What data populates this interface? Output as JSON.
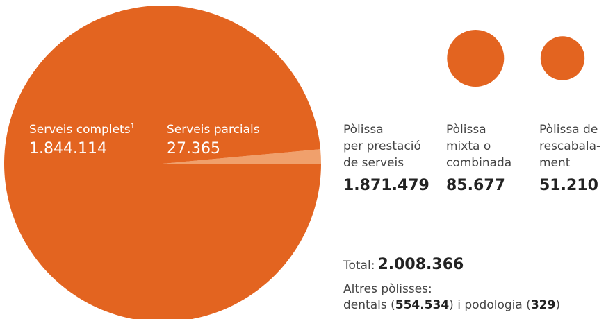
{
  "chart_data": [
    {
      "type": "pie",
      "categories": [
        "Serveis complets",
        "Serveis parcials"
      ],
      "category_notes": [
        "1",
        null
      ],
      "values": [
        1844114,
        27365
      ],
      "value_labels": [
        "1.844.114",
        "27.365"
      ],
      "colors": [
        "#e36420",
        "#f0a06c"
      ]
    },
    {
      "type": "bubble",
      "categories": [
        [
          "Pòlissa",
          "per prestació",
          "de serveis"
        ],
        [
          "Pòlissa",
          "mixta o",
          "combinada"
        ],
        [
          "Pòlissa de",
          "rescabala-",
          "ment"
        ]
      ],
      "values": [
        1871479,
        85677,
        51210
      ],
      "value_labels": [
        "1.871.479",
        "85.677",
        "51.210"
      ],
      "color": "#e36420"
    }
  ],
  "total": {
    "label": "Total:",
    "value": 2008366,
    "value_label": "2.008.366"
  },
  "other": {
    "title": "Altres pòlisses:",
    "parts": [
      "dentals (",
      {
        "value": 554534,
        "label": "554.534"
      },
      ") i podologia (",
      329,
      ")"
    ]
  }
}
